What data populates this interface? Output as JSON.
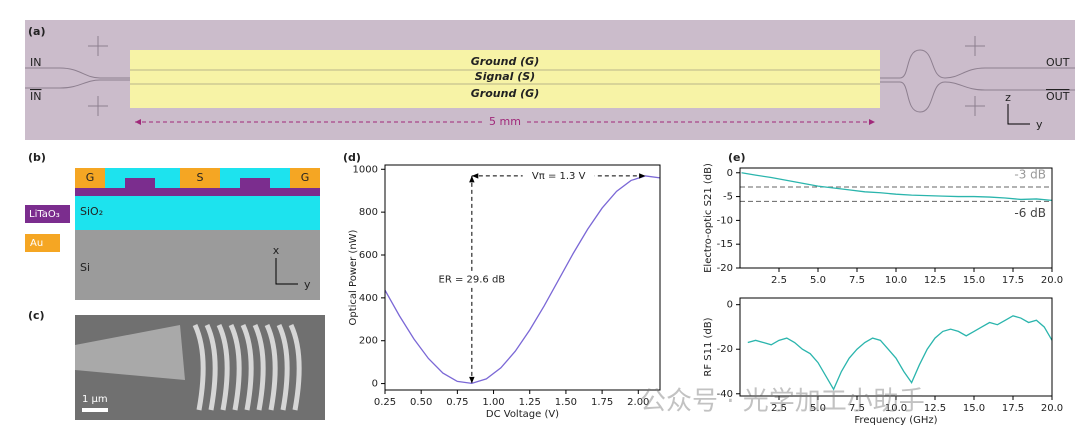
{
  "panel_labels": [
    "(a)",
    "(b)",
    "(c)",
    "(d)",
    "(e)"
  ],
  "panel_a": {
    "in": "IN",
    "in_bar": "IN",
    "out": "OUT",
    "out_bar": "OUT",
    "electrodes": [
      "Ground (G)",
      "Signal (S)",
      "Ground (G)"
    ],
    "length": "5 mm",
    "axis_z": "z",
    "axis_y": "y"
  },
  "panel_b": {
    "electrodes": [
      "G",
      "S",
      "G"
    ],
    "legend": [
      "LiTaO₃",
      "Au"
    ],
    "layers": [
      "SiO₂",
      "Si"
    ],
    "axis_x": "x",
    "axis_y": "y"
  },
  "panel_c": {
    "scale_bar": "1 µm"
  },
  "watermark": "公众号 · 光学加工小助手",
  "chart_data": [
    {
      "type": "line",
      "color": "#7b68d6",
      "xlabel": "DC Voltage (V)",
      "ylabel": "Optical Power (nW)",
      "annotations": [
        "Vπ = 1.3 V",
        "ER = 29.6 dB"
      ],
      "x": [
        0.25,
        0.35,
        0.45,
        0.55,
        0.65,
        0.75,
        0.85,
        0.95,
        1.05,
        1.15,
        1.25,
        1.35,
        1.45,
        1.55,
        1.65,
        1.75,
        1.85,
        1.95,
        2.05,
        2.15
      ],
      "values": [
        436,
        316,
        208,
        117,
        49,
        10,
        1,
        22,
        73,
        151,
        250,
        363,
        485,
        607,
        720,
        819,
        897,
        948,
        969,
        960
      ],
      "xlim": [
        0.25,
        2.15
      ],
      "ylim": [
        -30,
        1020
      ],
      "xticks": [
        0.25,
        {
          "value": 0.5,
          "label": "0.50"
        },
        0.75,
        {
          "value": 1,
          "label": "1.00"
        },
        1.25,
        {
          "value": 1.5,
          "label": "1.50"
        },
        1.75,
        {
          "value": 2,
          "label": "2.00"
        }
      ],
      "yticks": [
        0,
        200,
        400,
        600,
        800,
        1000
      ]
    },
    {
      "type": "line",
      "color": "#2bb5ad",
      "ylabel": "Electro-optic S21 (dB)",
      "ref_lines": [
        {
          "value": -3,
          "label": "-3 dB"
        },
        {
          "value": -6,
          "label": "-6 dB"
        }
      ],
      "x": [
        0.1,
        1,
        2,
        3,
        4,
        5,
        6,
        7,
        8,
        9,
        10,
        11,
        12,
        13,
        14,
        15,
        16,
        17,
        18,
        19,
        20
      ],
      "values": [
        0,
        -0.5,
        -1,
        -1.6,
        -2.2,
        -2.8,
        -3.2,
        -3.6,
        -4,
        -4.2,
        -4.5,
        -4.7,
        -4.8,
        -4.9,
        -5,
        -5,
        -5.1,
        -5.3,
        -5.6,
        -5.5,
        -5.8
      ],
      "xlim": [
        0,
        20
      ],
      "ylim": [
        -20,
        1
      ],
      "xticks": [
        2.5,
        {
          "value": 5,
          "label": "5.0"
        },
        7.5,
        {
          "value": 10,
          "label": "10.0"
        },
        12.5,
        {
          "value": 15,
          "label": "15.0"
        },
        17.5,
        {
          "value": 20,
          "label": "20.0"
        }
      ],
      "yticks": [
        0,
        -5,
        -10,
        -15,
        -20
      ]
    },
    {
      "type": "line",
      "color": "#2bb5ad",
      "xlabel": "Frequency (GHz)",
      "ylabel": "RF S11 (dB)",
      "x": [
        0.5,
        1,
        1.5,
        2,
        2.5,
        3,
        3.5,
        4,
        4.5,
        5,
        5.5,
        6,
        6.5,
        7,
        7.5,
        8,
        8.5,
        9,
        9.5,
        10,
        10.5,
        11,
        11.5,
        12,
        12.5,
        13,
        13.5,
        14,
        14.5,
        15,
        15.5,
        16,
        16.5,
        17,
        17.5,
        18,
        18.5,
        19,
        19.5,
        20
      ],
      "values": [
        -17,
        -16,
        -17,
        -18,
        -16,
        -15,
        -17,
        -20,
        -22,
        -26,
        -32,
        -38,
        -30,
        -24,
        -20,
        -17,
        -15,
        -16,
        -20,
        -24,
        -30,
        -35,
        -27,
        -20,
        -15,
        -12,
        -11,
        -12,
        -14,
        -12,
        -10,
        -8,
        -9,
        -7,
        -5,
        -6,
        -8,
        -7,
        -10,
        -16
      ],
      "xlim": [
        0,
        20
      ],
      "ylim": [
        -41,
        3
      ],
      "xticks": [
        2.5,
        {
          "value": 5,
          "label": "5.0"
        },
        7.5,
        {
          "value": 10,
          "label": "10.0"
        },
        12.5,
        {
          "value": 15,
          "label": "15.0"
        },
        17.5,
        {
          "value": 20,
          "label": "20.0"
        }
      ],
      "yticks": [
        0,
        -20,
        -40
      ]
    }
  ]
}
